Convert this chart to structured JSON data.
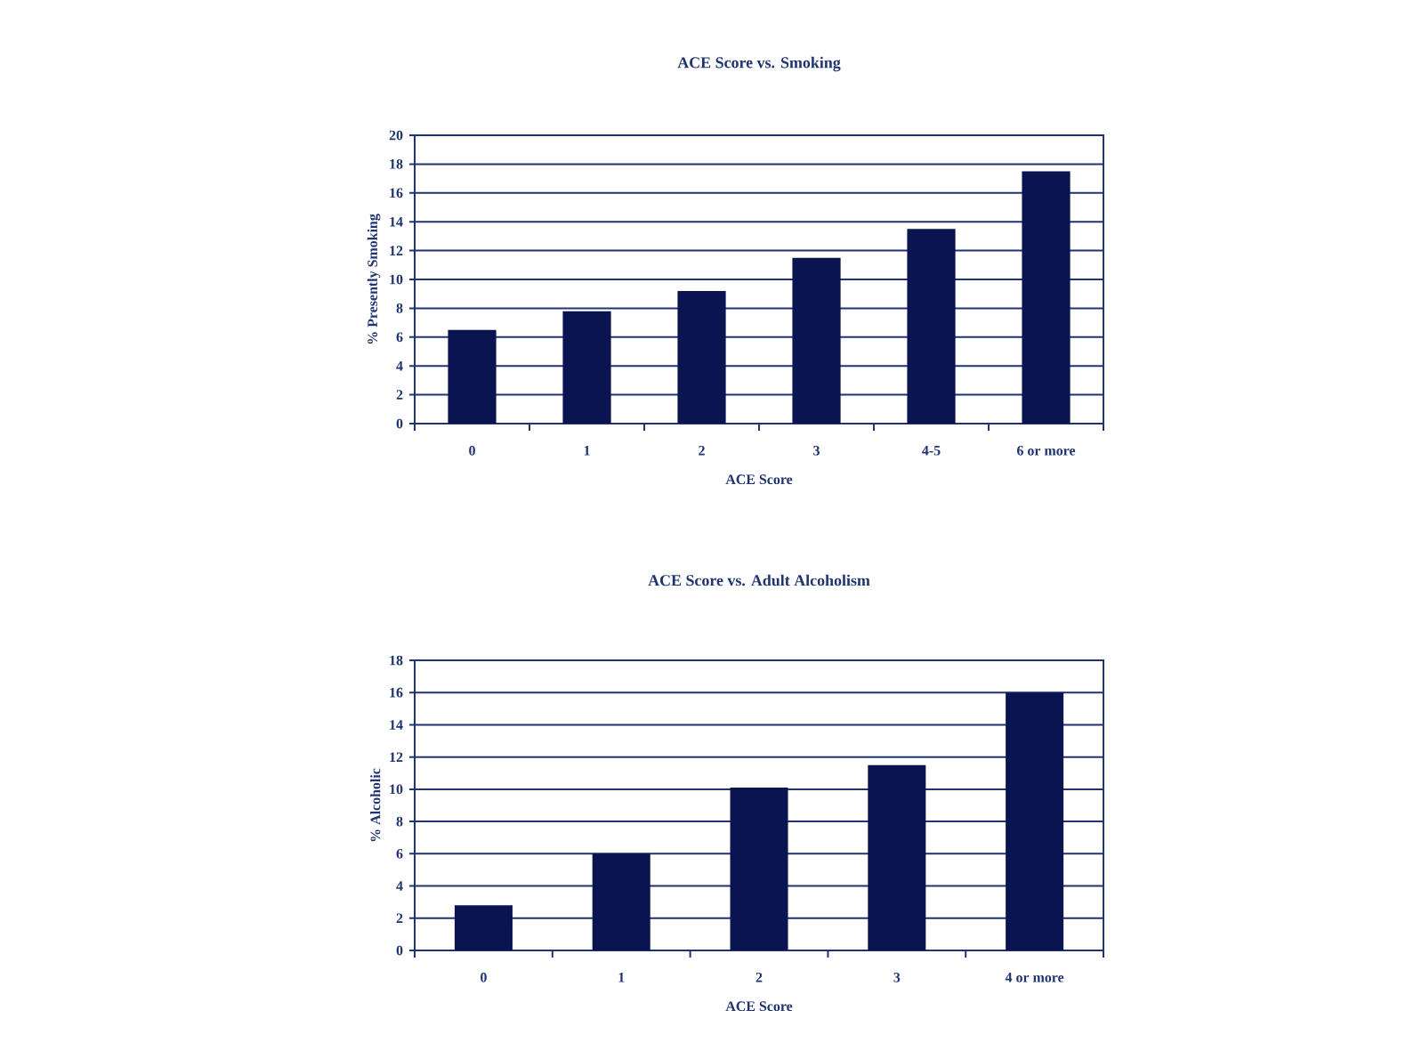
{
  "chart_data": [
    {
      "type": "bar",
      "title": "ACE Score vs. Smoking",
      "xlabel": "ACE Score",
      "ylabel": "% Presently Smoking",
      "categories": [
        "0",
        "1",
        "2",
        "3",
        "4-5",
        "6 or more"
      ],
      "values": [
        6.5,
        7.8,
        9.2,
        11.5,
        13.5,
        17.5
      ],
      "color": "#0a1450",
      "ylim": [
        0,
        20
      ],
      "yticks": [
        0,
        2,
        4,
        6,
        8,
        10,
        12,
        14,
        16,
        18,
        20
      ],
      "grid": "y"
    },
    {
      "type": "bar",
      "title": "ACE Score vs. Adult Alcoholism",
      "xlabel": "ACE Score",
      "ylabel": "% Alcoholic",
      "categories": [
        "0",
        "1",
        "2",
        "3",
        "4 or more"
      ],
      "values": [
        2.8,
        6.0,
        10.1,
        11.5,
        16.0
      ],
      "color": "#0a1450",
      "ylim": [
        0,
        18
      ],
      "yticks": [
        0,
        2,
        4,
        6,
        8,
        10,
        12,
        14,
        16,
        18
      ],
      "grid": "y"
    }
  ]
}
